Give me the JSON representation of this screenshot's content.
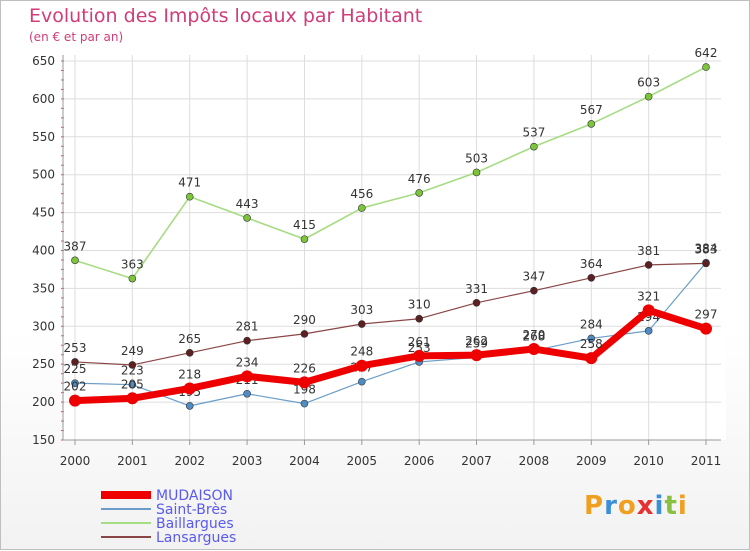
{
  "title": "Evolution des Impôts locaux par Habitant",
  "subtitle": "(en € et par an)",
  "logo": {
    "letters": [
      "P",
      "r",
      "o",
      "x",
      "i",
      "t",
      "i"
    ],
    "colors": [
      "#f0a020",
      "#3a8fd8",
      "#f0a020",
      "#e83030",
      "#3a8fd8",
      "#8ac040",
      "#f0a020"
    ]
  },
  "chart_data": {
    "type": "line",
    "title": "Evolution des Impôts locaux par Habitant",
    "ylabel": "(en € et par an)",
    "xlabel": "",
    "ylim": [
      150,
      650
    ],
    "yticks": [
      150,
      200,
      250,
      300,
      350,
      400,
      450,
      500,
      550,
      600,
      650
    ],
    "categories": [
      "2000",
      "2001",
      "2002",
      "2003",
      "2004",
      "2005",
      "2006",
      "2007",
      "2008",
      "2009",
      "2010",
      "2011"
    ],
    "series": [
      {
        "name": "Saint-Brès",
        "color": "#6a9ec8",
        "dot": "#4f8cc4",
        "width": 1.2,
        "values": [
          225,
          223,
          195,
          211,
          198,
          227,
          253,
          259,
          268,
          284,
          294,
          384
        ],
        "labels": [
          "225",
          "223",
          "195",
          "211",
          "198",
          "227",
          "253",
          "259",
          "268",
          "284",
          "294",
          "384"
        ]
      },
      {
        "name": "Baillargues",
        "color": "#a6dc82",
        "dot": "#7cc43a",
        "width": 1.6,
        "values": [
          387,
          363,
          471,
          443,
          415,
          456,
          476,
          503,
          537,
          567,
          603,
          642
        ],
        "labels": [
          "387",
          "363",
          "471",
          "443",
          "415",
          "456",
          "476",
          "503",
          "537",
          "567",
          "603",
          "642"
        ]
      },
      {
        "name": "Lansargues",
        "color": "#8a4646",
        "dot": "#5c1f22",
        "width": 1.2,
        "values": [
          253,
          249,
          265,
          281,
          290,
          303,
          310,
          331,
          347,
          364,
          381,
          383
        ],
        "labels": [
          "253",
          "249",
          "265",
          "281",
          "290",
          "303",
          "310",
          "331",
          "347",
          "364",
          "381",
          "383"
        ]
      },
      {
        "name": "MUDAISON",
        "color": "#ee0000",
        "dot": "#ee0000",
        "width": 7,
        "values": [
          202,
          205,
          218,
          234,
          226,
          248,
          261,
          262,
          270,
          258,
          321,
          297
        ],
        "labels": [
          "202",
          "205",
          "218",
          "234",
          "226",
          "248",
          "261",
          "262",
          "270",
          "258",
          "321",
          "297"
        ]
      }
    ],
    "legend": {
      "position": "bottom-left",
      "order": [
        "MUDAISON",
        "Saint-Brès",
        "Baillargues",
        "Lansargues"
      ],
      "text_color": "#5a5af0"
    },
    "grid": true
  }
}
